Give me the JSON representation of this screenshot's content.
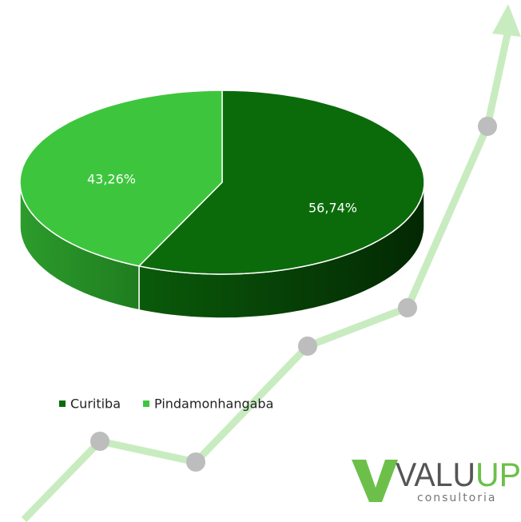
{
  "chart_data": {
    "type": "pie",
    "categories": [
      "Curitiba",
      "Pindamonhangaba"
    ],
    "values": [
      56.74,
      43.26
    ],
    "value_labels": [
      "56,74%",
      "43,26%"
    ],
    "colors": [
      "#0b6b0b",
      "#3dc63d"
    ],
    "legend": "bottom-left"
  },
  "logo": {
    "name_part1": "VALU",
    "name_part2": "UP",
    "tagline": "consultoria"
  }
}
